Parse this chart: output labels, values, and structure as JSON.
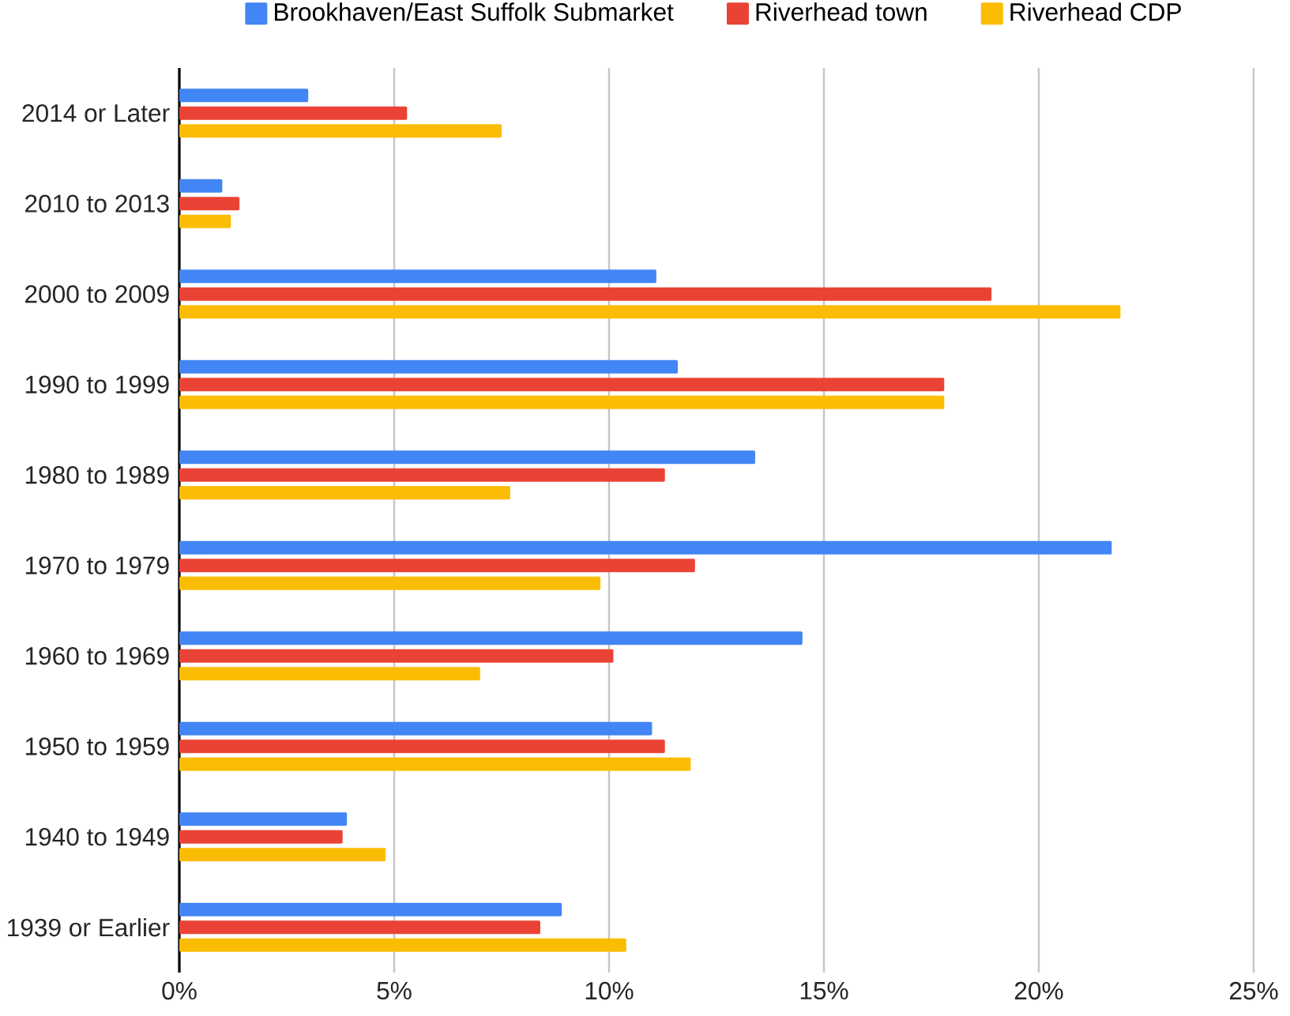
{
  "chart_data": {
    "type": "bar",
    "orientation": "horizontal",
    "categories": [
      "2014 or Later",
      "2010 to 2013",
      "2000 to 2009",
      "1990 to 1999",
      "1980 to 1989",
      "1970 to 1979",
      "1960 to 1969",
      "1950 to 1959",
      "1940 to 1949",
      "1939 or Earlier"
    ],
    "series": [
      {
        "name": "Brookhaven/East Suffolk Submarket",
        "color": "#4285f4",
        "values": [
          3.0,
          1.0,
          11.1,
          11.6,
          13.4,
          21.7,
          14.5,
          11.0,
          3.9,
          8.9
        ]
      },
      {
        "name": "Riverhead town",
        "color": "#ea4335",
        "values": [
          5.3,
          1.4,
          18.9,
          17.8,
          11.3,
          12.0,
          10.1,
          11.3,
          3.8,
          8.4
        ]
      },
      {
        "name": "Riverhead CDP",
        "color": "#fbbc04",
        "values": [
          7.5,
          1.2,
          21.9,
          17.8,
          7.7,
          9.8,
          7.0,
          11.9,
          4.8,
          10.4
        ]
      }
    ],
    "xlim": [
      0,
      25
    ],
    "xticks": [
      {
        "value": 0,
        "label": "0%"
      },
      {
        "value": 5,
        "label": "5%"
      },
      {
        "value": 10,
        "label": "10%"
      },
      {
        "value": 15,
        "label": "15%"
      },
      {
        "value": 20,
        "label": "20%"
      },
      {
        "value": 25,
        "label": "25%"
      }
    ],
    "grid": "x",
    "legend": "top"
  }
}
